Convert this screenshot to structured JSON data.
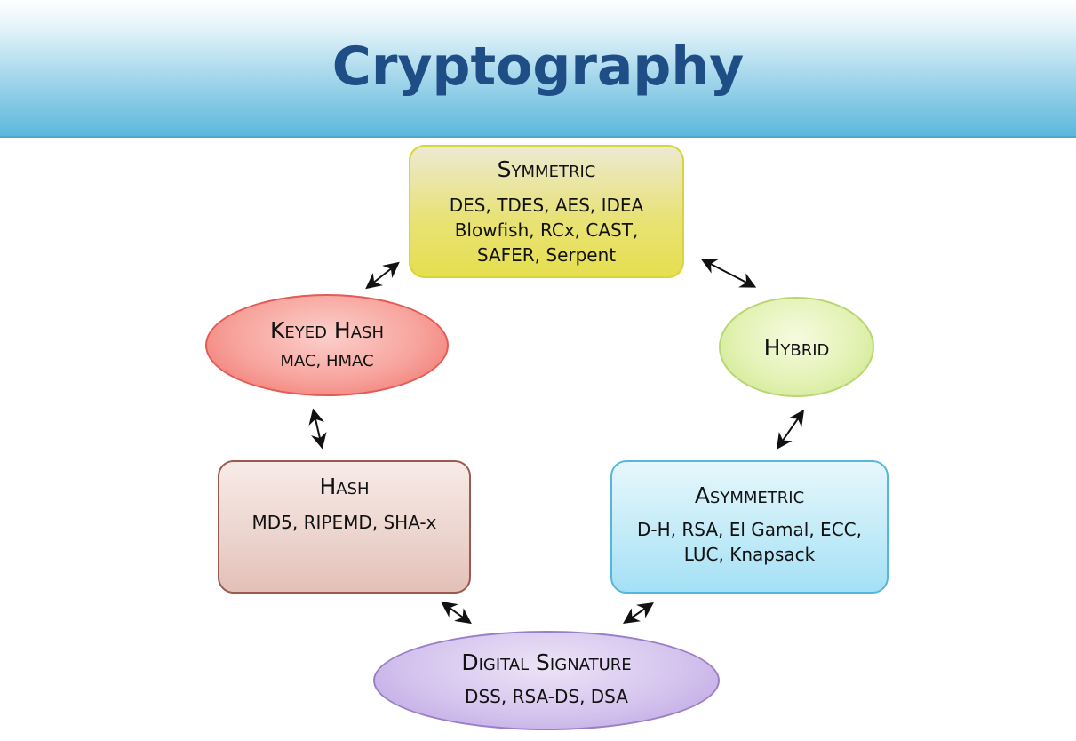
{
  "title": "Cryptography",
  "nodes": {
    "symmetric": {
      "label": "Symmetric",
      "items": "DES, TDES, AES, IDEA\nBlowfish,  RCx, CAST,\nSAFER, Serpent"
    },
    "keyed_hash": {
      "label": "Keyed Hash",
      "items": "MAC, HMAC"
    },
    "hybrid": {
      "label": "Hybrid",
      "items": ""
    },
    "hash": {
      "label": "Hash",
      "items": "MD5, RIPEMD, SHA-x"
    },
    "asymmetric": {
      "label": "Asymmetric",
      "items": "D-H, RSA, El Gamal, ECC,\nLUC, Knapsack"
    },
    "digital_signature": {
      "label": "Digital Signature",
      "items": "DSS, RSA-DS, DSA"
    }
  },
  "edges": [
    {
      "from": "symmetric",
      "to": "keyed_hash",
      "type": "bidirectional"
    },
    {
      "from": "symmetric",
      "to": "hybrid",
      "type": "bidirectional"
    },
    {
      "from": "keyed_hash",
      "to": "hash",
      "type": "bidirectional"
    },
    {
      "from": "hybrid",
      "to": "asymmetric",
      "type": "bidirectional"
    },
    {
      "from": "hash",
      "to": "digital_signature",
      "type": "bidirectional"
    },
    {
      "from": "asymmetric",
      "to": "digital_signature",
      "type": "bidirectional"
    }
  ]
}
